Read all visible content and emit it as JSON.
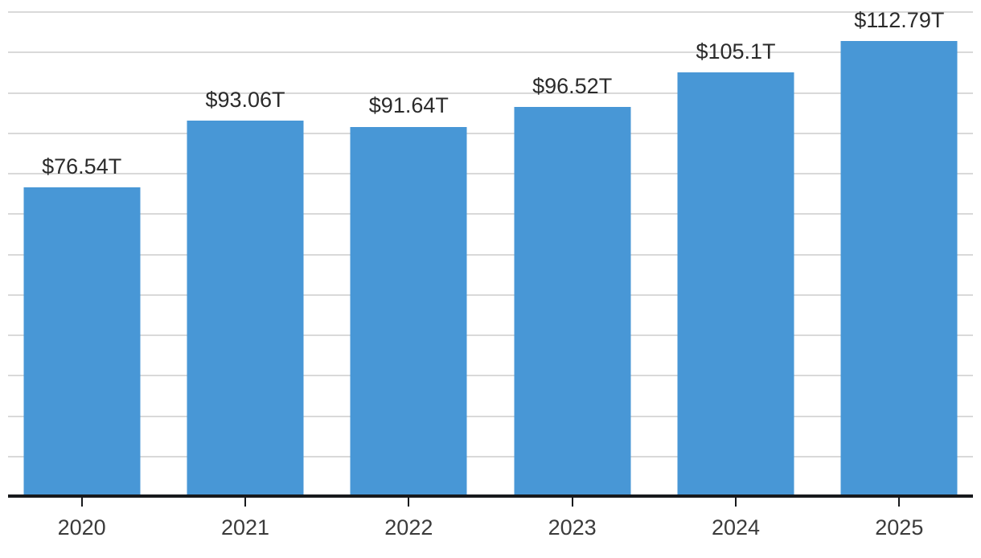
{
  "chart_data": {
    "type": "bar",
    "title": "",
    "xlabel": "",
    "ylabel": "",
    "categories": [
      "2020",
      "2021",
      "2022",
      "2023",
      "2024",
      "2025"
    ],
    "values": [
      76.54,
      93.06,
      91.64,
      96.52,
      105.1,
      112.79
    ],
    "labels": [
      "$76.54T",
      "$93.06T",
      "$91.64T",
      "$96.52T",
      "$105.1T",
      "$112.79T"
    ],
    "ylim": [
      0,
      123
    ],
    "gridlines": {
      "orientation": "horizontal",
      "interval": 10,
      "max": 120
    },
    "y_tick_labels_visible": false,
    "legend": "none"
  },
  "colors": {
    "bar": "#4897d6",
    "gridline": "#d9d9d9",
    "axis": "#17191c",
    "value_label_text": "#2b2b2b",
    "x_label_text": "#3b3b3b",
    "background": "#ffffff"
  }
}
